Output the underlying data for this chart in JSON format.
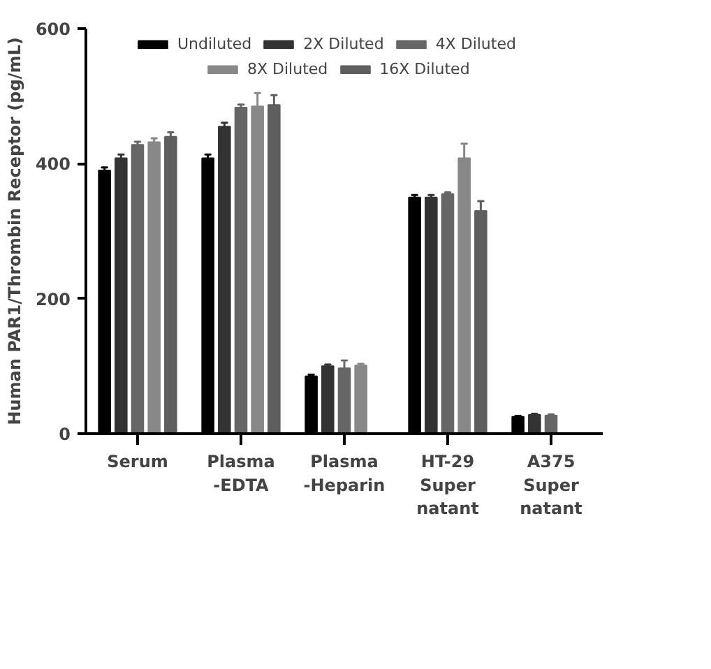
{
  "chart_data": {
    "type": "bar",
    "ylabel": "Human PAR1/Thrombin Receptor (pg/mL)",
    "categories": [
      "Serum",
      "Plasma\n-EDTA",
      "Plasma\n-Heparin",
      "HT-29\nSuper\nnatant",
      "A375\nSuper\nnatant"
    ],
    "series": [
      {
        "name": "Undiluted",
        "color": "#000000",
        "values": [
          390,
          408,
          85,
          350,
          25
        ],
        "errors": [
          5,
          6,
          3,
          4,
          2
        ]
      },
      {
        "name": "2X Diluted",
        "color": "#333333",
        "values": [
          408,
          455,
          100,
          350,
          28
        ],
        "errors": [
          6,
          6,
          3,
          4,
          2
        ]
      },
      {
        "name": "4X Diluted",
        "color": "#666666",
        "values": [
          428,
          483,
          97,
          355,
          27
        ],
        "errors": [
          5,
          5,
          12,
          3,
          2
        ]
      },
      {
        "name": "8X Diluted",
        "color": "#888888",
        "values": [
          432,
          485,
          101,
          408,
          null
        ],
        "errors": [
          6,
          20,
          3,
          22,
          null
        ]
      },
      {
        "name": "16X Diluted",
        "color": "#5e5e5e",
        "values": [
          440,
          487,
          null,
          330,
          null
        ],
        "errors": [
          7,
          15,
          null,
          15,
          null
        ]
      }
    ],
    "ylim": [
      0,
      600
    ],
    "yticks": [
      0,
      200,
      400,
      600
    ],
    "grid": false,
    "legend": "top"
  }
}
